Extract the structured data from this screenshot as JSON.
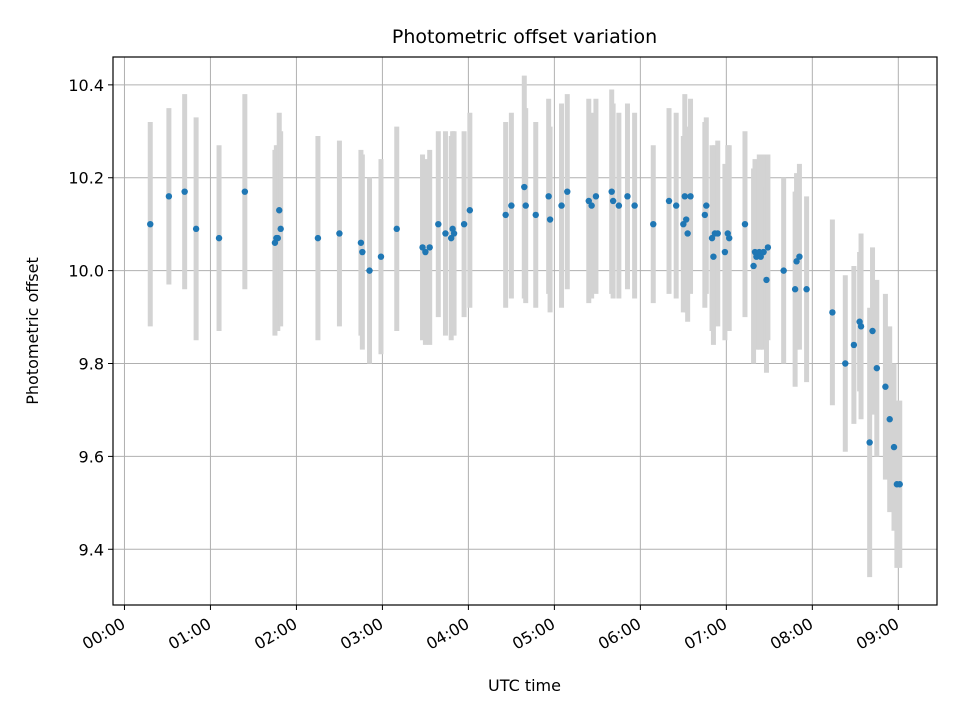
{
  "chart_data": {
    "type": "scatter",
    "title": "Photometric offset variation",
    "xlabel": "UTC time",
    "ylabel": "Photometric offset",
    "xlim": [
      "-00:08",
      "09:27"
    ],
    "ylim": [
      9.28,
      10.46
    ],
    "x_ticks": [
      "00:00",
      "01:00",
      "02:00",
      "03:00",
      "04:00",
      "05:00",
      "06:00",
      "07:00",
      "08:00",
      "09:00"
    ],
    "y_ticks": [
      "9.4",
      "9.6",
      "9.8",
      "10.0",
      "10.2",
      "10.4"
    ],
    "grid": true,
    "legend": "none",
    "colors": {
      "point": "#1f77b4",
      "errorbar": "#d3d3d3",
      "grid": "#b0b0b0"
    },
    "series": [
      {
        "x": [
          "00:18",
          "00:31",
          "00:42",
          "00:50",
          "01:06",
          "01:24",
          "01:45",
          "01:46",
          "01:47",
          "01:48",
          "01:49",
          "02:15",
          "02:30",
          "02:45",
          "02:46",
          "02:51",
          "02:59",
          "03:10",
          "03:28",
          "03:30",
          "03:33",
          "03:39",
          "03:44",
          "03:48",
          "03:49",
          "03:50",
          "03:57",
          "04:01",
          "04:26",
          "04:30",
          "04:39",
          "04:40",
          "04:47",
          "04:56",
          "04:57",
          "05:05",
          "05:09",
          "05:24",
          "05:26",
          "05:29",
          "05:40",
          "05:41",
          "05:45",
          "05:51",
          "05:56",
          "06:09",
          "06:20",
          "06:25",
          "06:30",
          "06:31",
          "06:32",
          "06:33",
          "06:35",
          "06:45",
          "06:46",
          "06:50",
          "06:51",
          "06:52",
          "06:54",
          "06:59",
          "07:01",
          "07:02",
          "07:13",
          "07:19",
          "07:20",
          "07:21",
          "07:23",
          "07:24",
          "07:26",
          "07:28",
          "07:29",
          "07:40",
          "07:48",
          "07:49",
          "07:51",
          "07:56",
          "08:14",
          "08:23",
          "08:29",
          "08:33",
          "08:34",
          "08:40",
          "08:42",
          "08:45",
          "08:51",
          "08:54",
          "08:57",
          "08:59",
          "09:01"
        ],
        "y": [
          10.1,
          10.16,
          10.17,
          10.09,
          10.07,
          10.17,
          10.06,
          10.07,
          10.07,
          10.13,
          10.09,
          10.07,
          10.08,
          10.06,
          10.04,
          10.0,
          10.03,
          10.09,
          10.05,
          10.04,
          10.05,
          10.1,
          10.08,
          10.07,
          10.09,
          10.08,
          10.1,
          10.13,
          10.12,
          10.14,
          10.18,
          10.14,
          10.12,
          10.16,
          10.11,
          10.14,
          10.17,
          10.15,
          10.14,
          10.16,
          10.17,
          10.15,
          10.14,
          10.16,
          10.14,
          10.1,
          10.15,
          10.14,
          10.1,
          10.16,
          10.11,
          10.08,
          10.16,
          10.12,
          10.14,
          10.07,
          10.03,
          10.08,
          10.08,
          10.04,
          10.08,
          10.07,
          10.1,
          10.01,
          10.04,
          10.03,
          10.04,
          10.03,
          10.04,
          9.98,
          10.05,
          10.0,
          9.96,
          10.02,
          10.03,
          9.96,
          9.91,
          9.8,
          9.84,
          9.89,
          9.88,
          9.63,
          9.87,
          9.79,
          9.75,
          9.68,
          9.62,
          9.54,
          9.54
        ],
        "err": [
          0.22,
          0.19,
          0.21,
          0.24,
          0.2,
          0.21,
          0.2,
          0.2,
          0.2,
          0.21,
          0.21,
          0.22,
          0.2,
          0.2,
          0.21,
          0.2,
          0.21,
          0.22,
          0.2,
          0.2,
          0.21,
          0.2,
          0.22,
          0.22,
          0.21,
          0.22,
          0.2,
          0.21,
          0.2,
          0.2,
          0.24,
          0.21,
          0.2,
          0.21,
          0.2,
          0.22,
          0.21,
          0.22,
          0.2,
          0.21,
          0.22,
          0.21,
          0.2,
          0.2,
          0.2,
          0.17,
          0.2,
          0.2,
          0.19,
          0.22,
          0.2,
          0.19,
          0.21,
          0.2,
          0.19,
          0.2,
          0.19,
          0.19,
          0.2,
          0.19,
          0.19,
          0.2,
          0.2,
          0.21,
          0.2,
          0.2,
          0.21,
          0.2,
          0.21,
          0.2,
          0.2,
          0.2,
          0.21,
          0.19,
          0.2,
          0.2,
          0.2,
          0.19,
          0.17,
          0.15,
          0.2,
          0.29,
          0.18,
          0.19,
          0.2,
          0.2,
          0.18,
          0.18,
          0.18
        ]
      }
    ]
  }
}
